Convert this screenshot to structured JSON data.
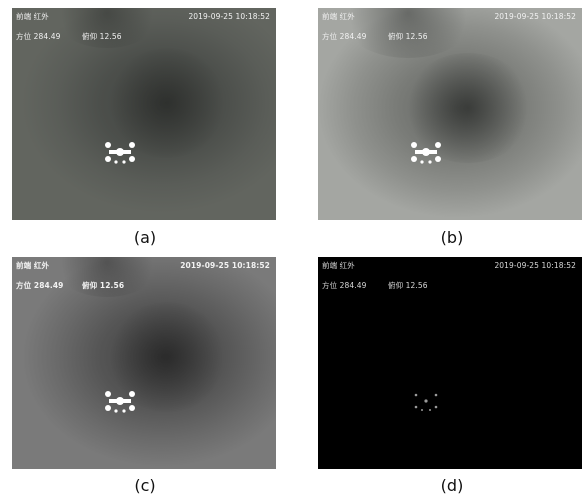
{
  "panels": [
    {
      "id": "a",
      "caption": "(a)",
      "mode": "前端  红外",
      "datetime": "2019-09-25  10:18:52",
      "azimuth": "方位 284.49",
      "elevation": "俯仰 12.56"
    },
    {
      "id": "b",
      "caption": "(b)",
      "mode": "前端  红外",
      "datetime": "2019-09-25  10:18:52",
      "azimuth": "方位 284.49",
      "elevation": "俯仰 12.56"
    },
    {
      "id": "c",
      "caption": "(c)",
      "mode": "前端  红外",
      "datetime": "2019-09-25  10:18:52",
      "azimuth": "方位 284.49",
      "elevation": "俯仰 12.56"
    },
    {
      "id": "d",
      "caption": "(d)",
      "mode": "前端  红外",
      "datetime": "2019-09-25  10:18:52",
      "azimuth": "方位 284.49",
      "elevation": "俯仰 12.56"
    }
  ],
  "colors": {
    "panel_a_bg": "#5c5f5a",
    "panel_b_bg": "#8f918d",
    "panel_c_bg": "#686868",
    "panel_d_bg": "#000000",
    "overlay_text": "#f2f2f2",
    "drone_hotspot": "#ffffff"
  },
  "icons": [
    "drone-hotspot-icon"
  ]
}
